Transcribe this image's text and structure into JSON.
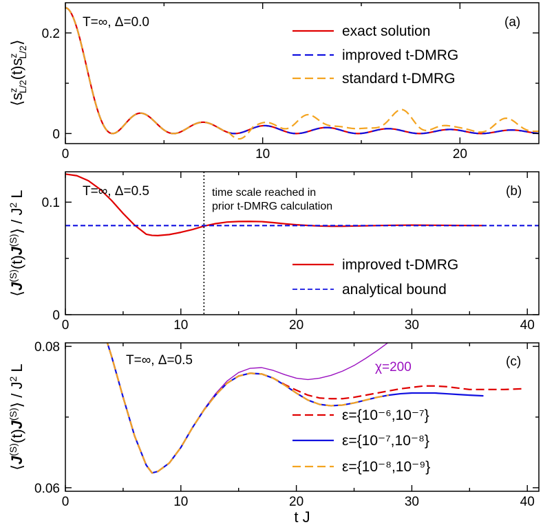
{
  "figure": {
    "shared_xlabel": "t J"
  },
  "chart_data": [
    {
      "id": "a",
      "type": "line",
      "panel_label": "(a)",
      "annotation": "T=∞, Δ=0.0",
      "ylabel": "⟨s^z_{L/2}(t) s^z_{L/2}⟩",
      "xlim": [
        0,
        24
      ],
      "ylim": [
        -0.02,
        0.26
      ],
      "xticks": [
        0,
        10,
        20
      ],
      "yticks": [
        0,
        0.2
      ],
      "ytick_labels": [
        "0",
        "0.2"
      ],
      "legend_position": "top-right",
      "series": [
        {
          "name": "exact solution",
          "color": "#e00000",
          "dash": "solid",
          "kind": "bessel"
        },
        {
          "name": "improved t-DMRG",
          "color": "#1010e0",
          "dash": "long",
          "kind": "bessel"
        },
        {
          "name": "standard t-DMRG",
          "color": "#f4a420",
          "dash": "long",
          "kind": "bessel_revival"
        }
      ]
    },
    {
      "id": "b",
      "type": "line",
      "panel_label": "(b)",
      "annotation": "T=∞, Δ=0.5",
      "note_line1": "time scale reached in",
      "note_line2": "prior t-DMRG calculation",
      "ylabel": "⟨J^(S)(t) J^(S)⟩ / J² L",
      "xlim": [
        0,
        41
      ],
      "ylim": [
        0,
        0.127
      ],
      "xticks": [
        0,
        10,
        20,
        30,
        40
      ],
      "yticks": [
        0,
        0.1
      ],
      "ytick_labels": [
        "0",
        "0.1"
      ],
      "vline_x": 12,
      "legend_position": "bottom-right",
      "series": [
        {
          "name": "improved t-DMRG",
          "color": "#e00000",
          "dash": "solid",
          "x": [
            0,
            1,
            2,
            3,
            4,
            5,
            6,
            7,
            7.5,
            8,
            9,
            10,
            11,
            12,
            13,
            14,
            15,
            16,
            17,
            18,
            19,
            20,
            21,
            22,
            23,
            24,
            25,
            26,
            28,
            30,
            32,
            34,
            36.2
          ],
          "y": [
            0.125,
            0.1235,
            0.119,
            0.1115,
            0.1015,
            0.09,
            0.0795,
            0.0715,
            0.0705,
            0.0703,
            0.0712,
            0.0732,
            0.0757,
            0.0787,
            0.0809,
            0.0823,
            0.0828,
            0.0829,
            0.0827,
            0.0818,
            0.0808,
            0.0799,
            0.0793,
            0.0788,
            0.0786,
            0.0786,
            0.0788,
            0.079,
            0.0794,
            0.0796,
            0.0795,
            0.0793,
            0.0792
          ]
        },
        {
          "name": "analytical bound",
          "color": "#1010e0",
          "dash": "short",
          "x": [
            0,
            41
          ],
          "y": [
            0.0792,
            0.0792
          ]
        }
      ]
    },
    {
      "id": "c",
      "type": "line",
      "panel_label": "(c)",
      "annotation": "T=∞, Δ=0.5",
      "chi_label": "χ=200",
      "ylabel": "⟨J^(S)(t) J^(S)⟩ / J² L",
      "xlim": [
        0,
        41
      ],
      "ylim": [
        0.0595,
        0.0805
      ],
      "xticks": [
        0,
        10,
        20,
        30,
        40
      ],
      "yticks": [
        0.06,
        0.08
      ],
      "ytick_labels": [
        "0.06",
        "0.08"
      ],
      "legend_position": "bottom-right",
      "series": [
        {
          "name": "χ=200",
          "color": "#9a10c0",
          "dash": "solid",
          "legend": false,
          "thin": true,
          "x": [
            3.5,
            4,
            5,
            6,
            7,
            7.5,
            8,
            9,
            10,
            11,
            12,
            13,
            14,
            15,
            16,
            17,
            18,
            19,
            20,
            21,
            22,
            23,
            24,
            25,
            26,
            27,
            28,
            28.5
          ],
          "y": [
            0.0812,
            0.0786,
            0.0728,
            0.0673,
            0.0632,
            0.0621,
            0.0623,
            0.0635,
            0.0657,
            0.0685,
            0.0711,
            0.0733,
            0.0751,
            0.0763,
            0.0769,
            0.077,
            0.0766,
            0.076,
            0.0755,
            0.0753,
            0.0755,
            0.0759,
            0.0765,
            0.0773,
            0.0783,
            0.0794,
            0.0806,
            0.0813
          ]
        },
        {
          "name": "ε={10⁻⁶,10⁻⁷}",
          "color": "#e00000",
          "dash": "long",
          "x": [
            3.5,
            4,
            5,
            6,
            7,
            7.5,
            8,
            9,
            10,
            11,
            12,
            13,
            14,
            15,
            16,
            17,
            18,
            19,
            20,
            21,
            22,
            23,
            24,
            25,
            26,
            27,
            28,
            29,
            30,
            31,
            32,
            33,
            34,
            35,
            36,
            37,
            38,
            39.5
          ],
          "y": [
            0.0812,
            0.0786,
            0.0728,
            0.0673,
            0.0632,
            0.0621,
            0.0623,
            0.0635,
            0.0657,
            0.0685,
            0.071,
            0.0731,
            0.0748,
            0.0758,
            0.0762,
            0.0761,
            0.0755,
            0.0746,
            0.0738,
            0.0731,
            0.0727,
            0.0726,
            0.0726,
            0.0728,
            0.0731,
            0.0734,
            0.0737,
            0.074,
            0.0742,
            0.0744,
            0.0744,
            0.0743,
            0.0741,
            0.0739,
            0.0739,
            0.0739,
            0.0739,
            0.074
          ]
        },
        {
          "name": "ε={10⁻⁷,10⁻⁸}",
          "color": "#1010e0",
          "dash": "solid",
          "x": [
            3.5,
            4,
            5,
            6,
            7,
            7.5,
            8,
            9,
            10,
            11,
            12,
            13,
            14,
            15,
            16,
            17,
            18,
            19,
            20,
            21,
            22,
            23,
            24,
            25,
            26,
            27,
            28,
            29,
            30,
            31,
            32,
            33,
            34,
            35,
            36.2
          ],
          "y": [
            0.0812,
            0.0786,
            0.0728,
            0.0673,
            0.0632,
            0.0621,
            0.0623,
            0.0635,
            0.0657,
            0.0685,
            0.071,
            0.0731,
            0.0748,
            0.0758,
            0.0762,
            0.0761,
            0.0755,
            0.0745,
            0.0734,
            0.0724,
            0.0718,
            0.0716,
            0.0717,
            0.072,
            0.0724,
            0.0728,
            0.0731,
            0.0733,
            0.0734,
            0.0734,
            0.0734,
            0.0733,
            0.0732,
            0.0731,
            0.073
          ]
        },
        {
          "name": "ε={10⁻⁸,10⁻⁹}",
          "color": "#f4a420",
          "dash": "long",
          "x": [
            3.5,
            4,
            5,
            6,
            7,
            7.5,
            8,
            9,
            10,
            11,
            12,
            13,
            14,
            15,
            16,
            17,
            18,
            19,
            20,
            21,
            22,
            23,
            24,
            25,
            26,
            27,
            28
          ],
          "y": [
            0.0812,
            0.0786,
            0.0728,
            0.0673,
            0.0632,
            0.0621,
            0.0623,
            0.0635,
            0.0657,
            0.0685,
            0.071,
            0.0731,
            0.0748,
            0.0758,
            0.0762,
            0.0761,
            0.0755,
            0.0745,
            0.0734,
            0.0724,
            0.0718,
            0.0716,
            0.0717,
            0.072,
            0.0724,
            0.0728,
            0.0731
          ]
        }
      ]
    }
  ]
}
